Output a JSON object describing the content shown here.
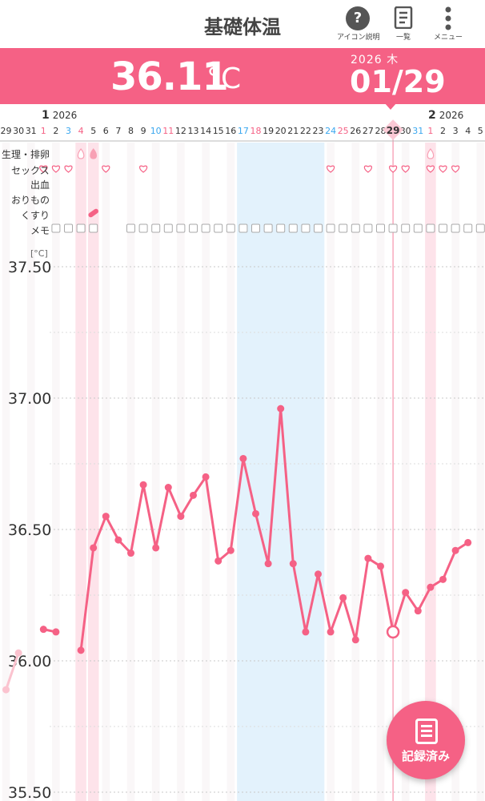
{
  "topbar": {
    "title": "基礎体温",
    "help": {
      "icon": "help-icon",
      "label": "アイコン説明"
    },
    "list": {
      "icon": "list-icon",
      "label": "一覧"
    },
    "menu": {
      "icon": "more-vertical-icon",
      "label": "メニュー"
    }
  },
  "header": {
    "temperature": "36.11",
    "unit": "°C",
    "year": "2026",
    "weekday": "木",
    "date": "01/29"
  },
  "colors": {
    "accent": "#f56185",
    "blue": "#3aa7ef",
    "periodBand": "#fde3ea",
    "ovulationBand": "#e3f2fc"
  },
  "date_strip": {
    "months": [
      {
        "month": "1",
        "year": "2026"
      },
      {
        "month": "2",
        "year": "2026"
      }
    ],
    "days": [
      "29",
      "30",
      "31",
      "1",
      "2",
      "3",
      "4",
      "5",
      "6",
      "7",
      "8",
      "9",
      "10",
      "11",
      "12",
      "13",
      "14",
      "15",
      "16",
      "17",
      "18",
      "19",
      "20",
      "21",
      "22",
      "23",
      "24",
      "25",
      "26",
      "27",
      "28",
      "29",
      "30",
      "31",
      "1",
      "2",
      "3",
      "4",
      "5"
    ],
    "selected": "29"
  },
  "row_labels": {
    "period": "生理・排卵",
    "sex": "セックス",
    "bleeding": "出血",
    "discharge": "おりもの",
    "medicine": "くすり",
    "memo": "メモ"
  },
  "chart_data": {
    "type": "line",
    "ylabel": "[°C]",
    "ylim": [
      35.5,
      37.6
    ],
    "yticks": [
      "37.50",
      "37.00",
      "36.50",
      "36.00",
      "35.50"
    ],
    "x": [
      "12/29",
      "12/30",
      "12/31",
      "1/1",
      "1/2",
      "1/3",
      "1/4",
      "1/5",
      "1/6",
      "1/7",
      "1/8",
      "1/9",
      "1/10",
      "1/11",
      "1/12",
      "1/13",
      "1/14",
      "1/15",
      "1/16",
      "1/17",
      "1/18",
      "1/19",
      "1/20",
      "1/21",
      "1/22",
      "1/23",
      "1/24",
      "1/25",
      "1/26",
      "1/27",
      "1/28",
      "1/29",
      "1/30",
      "1/31",
      "2/1",
      "2/2",
      "2/3",
      "2/4"
    ],
    "series": [
      {
        "values": [
          35.89,
          36.03,
          null,
          36.12,
          36.11,
          null,
          36.04,
          36.43,
          36.55,
          36.46,
          36.41,
          36.67,
          36.43,
          36.66,
          36.55,
          36.63,
          36.7,
          36.38,
          36.42,
          36.77,
          36.56,
          36.37,
          36.96,
          36.37,
          36.11,
          36.33,
          36.11,
          36.24,
          36.08,
          36.39,
          36.36,
          36.11,
          36.26,
          36.19,
          36.28,
          36.31,
          36.42,
          36.45
        ]
      }
    ],
    "period_days": [
      "1/4",
      "1/5",
      "2/1"
    ],
    "ovulation_days": [
      "1/17",
      "1/18",
      "1/19",
      "1/20",
      "1/21",
      "1/22",
      "1/23"
    ],
    "selected_day": "1/29"
  },
  "fab": {
    "label": "記録済み",
    "icon": "record-list-icon"
  }
}
